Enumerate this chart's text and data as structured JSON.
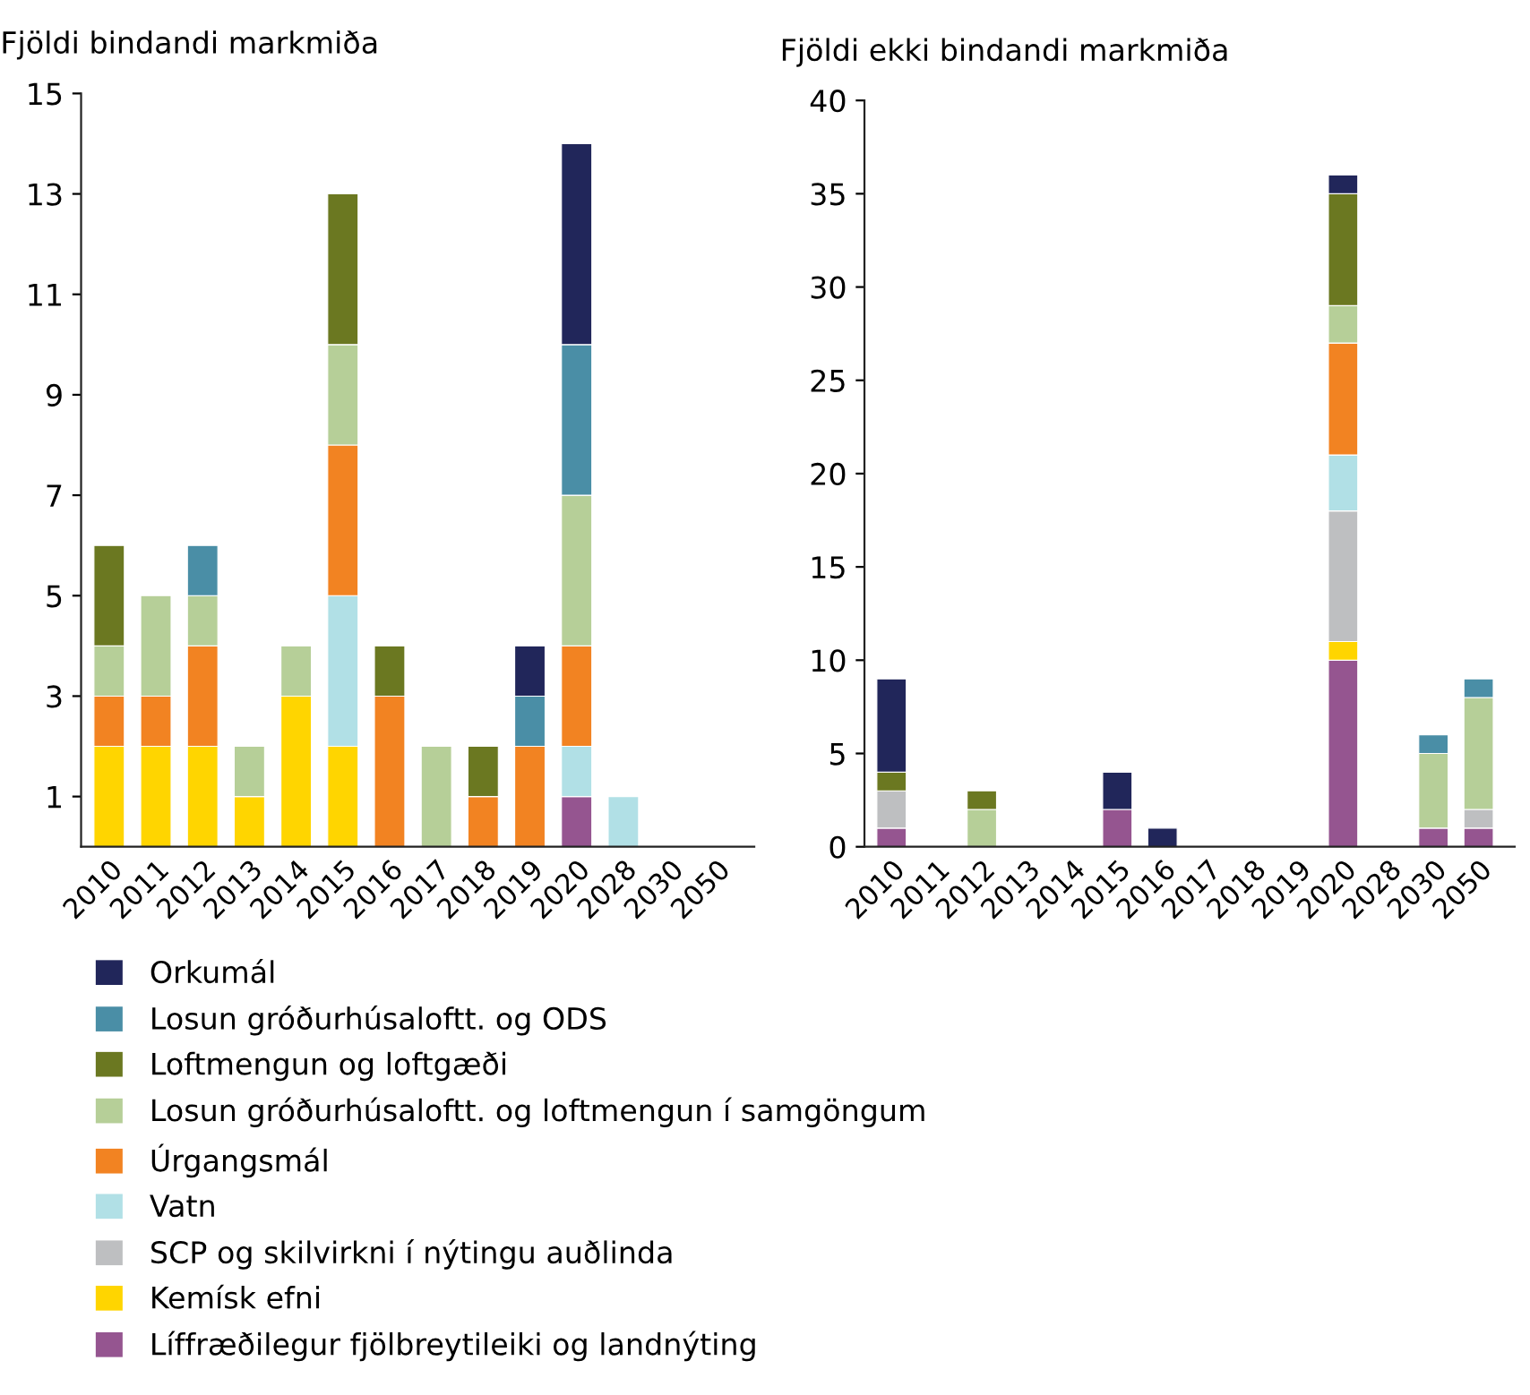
{
  "chart_data": [
    {
      "type": "bar",
      "stacked": true,
      "title": "Fjöldi bindandi markmiða",
      "grid": false,
      "categories": [
        "2010",
        "2011",
        "2012",
        "2013",
        "2014",
        "2015",
        "2016",
        "2017",
        "2018",
        "2019",
        "2020",
        "2028",
        "2030",
        "2050"
      ],
      "ylim": [
        0,
        15
      ],
      "yticks": [
        1,
        3,
        5,
        7,
        9,
        11,
        13,
        15
      ],
      "series": [
        {
          "color": "#955590",
          "values": [
            null,
            null,
            null,
            null,
            null,
            null,
            null,
            null,
            null,
            null,
            1,
            null,
            null,
            null
          ]
        },
        {
          "color": "#ffd500",
          "values": [
            2,
            2,
            2,
            1,
            3,
            2,
            null,
            null,
            null,
            null,
            null,
            null,
            null,
            null
          ]
        },
        {
          "color": "#b1e0e6",
          "values": [
            null,
            null,
            null,
            null,
            null,
            3,
            null,
            null,
            null,
            null,
            1,
            1,
            null,
            null
          ]
        },
        {
          "color": "#f28322",
          "values": [
            1,
            1,
            2,
            null,
            null,
            3,
            3,
            null,
            1,
            2,
            2,
            null,
            null,
            null
          ]
        },
        {
          "color": "#b6cf98",
          "values": [
            1,
            2,
            1,
            1,
            1,
            2,
            null,
            2,
            null,
            null,
            3,
            null,
            null,
            null
          ]
        },
        {
          "color": "#6b7821",
          "values": [
            2,
            null,
            null,
            null,
            null,
            3,
            1,
            null,
            1,
            null,
            null,
            null,
            null,
            null
          ]
        },
        {
          "color": "#4a8ea6",
          "values": [
            null,
            null,
            1,
            null,
            null,
            null,
            null,
            null,
            null,
            1,
            3,
            null,
            null,
            null
          ]
        },
        {
          "color": "#21265a",
          "values": [
            null,
            null,
            null,
            null,
            null,
            null,
            null,
            null,
            null,
            1,
            4,
            null,
            null,
            null
          ]
        }
      ]
    },
    {
      "type": "bar",
      "stacked": true,
      "title": "Fjöldi ekki bindandi markmiða",
      "legend": "bottom",
      "grid": false,
      "categories": [
        "2010",
        "2011",
        "2012",
        "2013",
        "2014",
        "2015",
        "2016",
        "2017",
        "2018",
        "2019",
        "2020",
        "2028",
        "2030",
        "2050"
      ],
      "ylim": [
        0,
        40
      ],
      "yticks": [
        0,
        5,
        10,
        15,
        20,
        25,
        30,
        35,
        40
      ],
      "series": [
        {
          "name": "Líffræðilegur fjölbreytileiki og landnýting",
          "color": "#955590",
          "values": [
            1,
            null,
            null,
            null,
            null,
            2,
            null,
            null,
            null,
            null,
            10,
            null,
            1,
            1
          ]
        },
        {
          "name": "Kemísk efni",
          "color": "#ffd500",
          "values": [
            null,
            null,
            null,
            null,
            null,
            null,
            null,
            null,
            null,
            null,
            1,
            null,
            null,
            null
          ]
        },
        {
          "name": "SCP og skilvirkni í nýtingu auðlinda",
          "color": "#bebfc1",
          "values": [
            2,
            null,
            null,
            null,
            null,
            null,
            null,
            null,
            null,
            null,
            7,
            null,
            null,
            1
          ]
        },
        {
          "name": "Vatn",
          "color": "#b1e0e6",
          "values": [
            null,
            null,
            null,
            null,
            null,
            null,
            null,
            null,
            null,
            null,
            3,
            null,
            null,
            null
          ]
        },
        {
          "name": "Úrgangsmál",
          "color": "#f28322",
          "values": [
            null,
            null,
            null,
            null,
            null,
            null,
            null,
            null,
            null,
            null,
            6,
            null,
            null,
            null
          ]
        },
        {
          "name": "Losun gróðurhúsaloftt. og loftmengun í samgöngum",
          "color": "#b6cf98",
          "values": [
            null,
            null,
            2,
            null,
            null,
            null,
            null,
            null,
            null,
            null,
            2,
            null,
            4,
            6
          ]
        },
        {
          "name": "Loftmengun og loftgæði",
          "color": "#6b7821",
          "values": [
            1,
            null,
            1,
            null,
            null,
            null,
            null,
            null,
            null,
            null,
            6,
            null,
            null,
            null
          ]
        },
        {
          "name": "Losun gróðurhúsaloftt. og ODS",
          "color": "#4a8ea6",
          "values": [
            null,
            null,
            null,
            null,
            null,
            null,
            null,
            null,
            null,
            null,
            null,
            null,
            1,
            1
          ]
        },
        {
          "name": "Orkumál",
          "color": "#21265a",
          "values": [
            5,
            null,
            null,
            null,
            null,
            2,
            1,
            null,
            null,
            null,
            1,
            null,
            null,
            null
          ]
        }
      ]
    }
  ]
}
